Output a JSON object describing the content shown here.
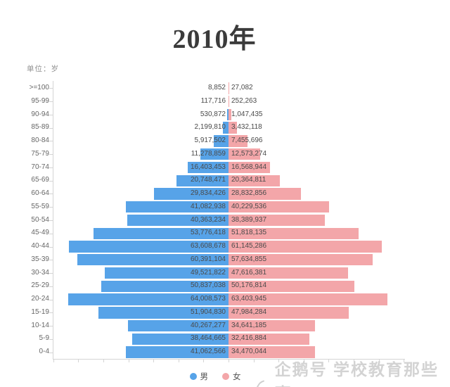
{
  "title": "2010年",
  "unit_label": "单位：岁",
  "legend": {
    "male": "男",
    "female": "女"
  },
  "watermark": {
    "text": "企鹅号 学校教育那些事"
  },
  "colors": {
    "male_bar": "#57a3e8",
    "female_bar": "#f3a6a9",
    "axis": "#d4d4d4",
    "value_text": "#4a4a4a",
    "axis_text": "#666666"
  },
  "chart_data": {
    "type": "bar",
    "subtype": "population-pyramid",
    "title": "2010年",
    "xlabel": "",
    "ylabel": "单位：岁",
    "legend_position": "bottom",
    "grid": false,
    "xlim_per_side": 70000000,
    "x_tick_interval": 10000000,
    "categories": [
      ">=100",
      "95-99",
      "90-94",
      "85-89",
      "80-84",
      "75-79",
      "70-74",
      "65-69",
      "60-64",
      "55-59",
      "50-54",
      "45-49",
      "40-44",
      "35-39",
      "30-34",
      "25-29",
      "20-24",
      "15-19",
      "10-14",
      "5-9",
      "0-4"
    ],
    "series": [
      {
        "name": "男",
        "values": [
          8852,
          117716,
          530872,
          2199810,
          5917502,
          11278859,
          16403453,
          20748471,
          29834426,
          41082938,
          40363234,
          53776418,
          63608678,
          60391104,
          49521822,
          50837038,
          64008573,
          51904830,
          40267277,
          38464665,
          41062566
        ],
        "labels": [
          "8,852",
          "117,716",
          "530,872",
          "2,199,810",
          "5,917,502",
          "11,278,859",
          "16,403,453",
          "20,748,471",
          "29,834,426",
          "41,082,938",
          "40,363,234",
          "53,776,418",
          "63,608,678",
          "60,391,104",
          "49,521,822",
          "50,837,038",
          "64,008,573",
          "51,904,830",
          "40,267,277",
          "38,464,665",
          "41,062,566"
        ]
      },
      {
        "name": "女",
        "values": [
          27082,
          252263,
          1047435,
          3432118,
          7455696,
          12573274,
          16568944,
          20364811,
          28832856,
          40229536,
          38389937,
          51818135,
          61145286,
          57634855,
          47616381,
          50176814,
          63403945,
          47984284,
          34641185,
          32416884,
          34470044
        ],
        "labels": [
          "27,082",
          "252,263",
          "1,047,435",
          "3,432,118",
          "7,455,696",
          "12,573,274",
          "16,568,944",
          "20,364,811",
          "28,832,856",
          "40,229,536",
          "38,389,937",
          "51,818,135",
          "61,145,286",
          "57,634,855",
          "47,616,381",
          "50,176,814",
          "63,403,945",
          "47,984,284",
          "34,641,185",
          "32,416,884",
          "34,470,044"
        ]
      }
    ]
  }
}
